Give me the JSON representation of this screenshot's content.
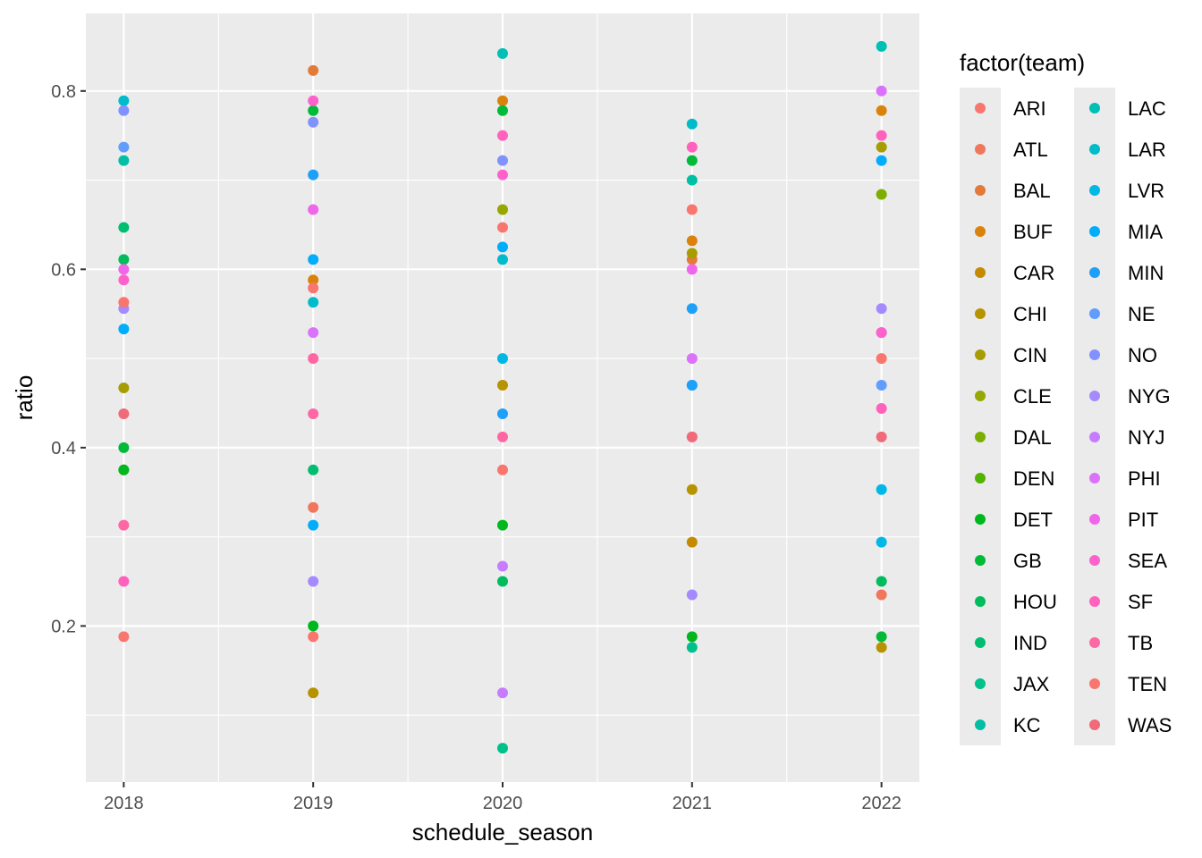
{
  "chart_data": {
    "type": "scatter",
    "xlabel": "schedule_season",
    "ylabel": "ratio",
    "x_ticks": [
      "2018",
      "2019",
      "2020",
      "2021",
      "2022"
    ],
    "y_ticks": [
      "0.2",
      "0.4",
      "0.6",
      "0.8"
    ],
    "xlim": [
      2017.8,
      2022.2
    ],
    "ylim": [
      0.025,
      0.887
    ],
    "grid": true,
    "legend": {
      "title": "factor(team)",
      "position": "right",
      "columns": 2
    },
    "colors": {
      "panel_background": "#EBEBEB",
      "grid_line": "#FFFFFF"
    },
    "series": [
      {
        "name": "ARI",
        "color": "#F8766D",
        "points": [
          [
            2018,
            0.188
          ],
          [
            2019,
            0.188
          ],
          [
            2020,
            0.375
          ]
        ]
      },
      {
        "name": "ATL",
        "color": "#F0775B",
        "points": [
          [
            2019,
            0.333
          ],
          [
            2022,
            0.235
          ]
        ]
      },
      {
        "name": "BAL",
        "color": "#E47A38",
        "points": [
          [
            2019,
            0.823
          ],
          [
            2021,
            0.611
          ]
        ]
      },
      {
        "name": "BUF",
        "color": "#D9830C",
        "points": [
          [
            2019,
            0.588
          ],
          [
            2020,
            0.789
          ],
          [
            2021,
            0.632
          ],
          [
            2022,
            0.778
          ]
        ]
      },
      {
        "name": "CAR",
        "color": "#C58B00",
        "points": [
          [
            2021,
            0.294
          ]
        ]
      },
      {
        "name": "CHI",
        "color": "#B79300",
        "points": [
          [
            2019,
            0.125
          ],
          [
            2020,
            0.47
          ],
          [
            2021,
            0.353
          ],
          [
            2022,
            0.176
          ]
        ]
      },
      {
        "name": "CIN",
        "color": "#A79C00",
        "points": [
          [
            2018,
            0.467
          ],
          [
            2021,
            0.618
          ],
          [
            2022,
            0.737
          ]
        ]
      },
      {
        "name": "CLE",
        "color": "#96A700",
        "points": [
          [
            2020,
            0.667
          ]
        ]
      },
      {
        "name": "DAL",
        "color": "#7CAE00",
        "points": [
          [
            2022,
            0.684
          ]
        ]
      },
      {
        "name": "DEN",
        "color": "#52B300",
        "points": [
          [
            2018,
            0.375
          ]
        ]
      },
      {
        "name": "DET",
        "color": "#00B81E",
        "points": [
          [
            2018,
            0.375
          ],
          [
            2019,
            0.2
          ],
          [
            2020,
            0.313
          ],
          [
            2021,
            0.188
          ]
        ]
      },
      {
        "name": "GB",
        "color": "#00BA38",
        "points": [
          [
            2018,
            0.4
          ],
          [
            2019,
            0.778
          ],
          [
            2020,
            0.778
          ],
          [
            2021,
            0.722
          ],
          [
            2022,
            0.188
          ]
        ]
      },
      {
        "name": "HOU",
        "color": "#00BC5C",
        "points": [
          [
            2018,
            0.611
          ],
          [
            2020,
            0.25
          ],
          [
            2022,
            0.25
          ]
        ]
      },
      {
        "name": "IND",
        "color": "#00BE70",
        "points": [
          [
            2018,
            0.647
          ],
          [
            2019,
            0.375
          ]
        ]
      },
      {
        "name": "JAX",
        "color": "#00C08B",
        "points": [
          [
            2020,
            0.063
          ],
          [
            2021,
            0.176
          ]
        ]
      },
      {
        "name": "KC",
        "color": "#00BFA4",
        "points": [
          [
            2018,
            0.722
          ],
          [
            2021,
            0.7
          ],
          [
            2022,
            0.529
          ]
        ]
      },
      {
        "name": "LAC",
        "color": "#00BFB4",
        "points": [
          [
            2020,
            0.842
          ],
          [
            2022,
            0.85
          ]
        ]
      },
      {
        "name": "LAR",
        "color": "#00BCCA",
        "points": [
          [
            2018,
            0.789
          ],
          [
            2019,
            0.563
          ],
          [
            2020,
            0.611
          ],
          [
            2021,
            0.763
          ]
        ]
      },
      {
        "name": "LVR",
        "color": "#00B8E5",
        "points": [
          [
            2020,
            0.5
          ],
          [
            2022,
            0.294
          ],
          [
            2022,
            0.353
          ]
        ]
      },
      {
        "name": "MIA",
        "color": "#00ADFA",
        "points": [
          [
            2018,
            0.533
          ],
          [
            2019,
            0.313
          ],
          [
            2019,
            0.611
          ],
          [
            2020,
            0.625
          ],
          [
            2021,
            0.47
          ],
          [
            2022,
            0.722
          ]
        ]
      },
      {
        "name": "MIN",
        "color": "#1EA0F8",
        "points": [
          [
            2019,
            0.706
          ],
          [
            2020,
            0.438
          ],
          [
            2021,
            0.47
          ],
          [
            2021,
            0.556
          ]
        ]
      },
      {
        "name": "NE",
        "color": "#619CFF",
        "points": [
          [
            2018,
            0.737
          ],
          [
            2022,
            0.47
          ]
        ]
      },
      {
        "name": "NO",
        "color": "#8192FF",
        "points": [
          [
            2018,
            0.778
          ],
          [
            2019,
            0.765
          ],
          [
            2020,
            0.722
          ]
        ]
      },
      {
        "name": "NYG",
        "color": "#A58AFF",
        "points": [
          [
            2018,
            0.556
          ],
          [
            2019,
            0.25
          ],
          [
            2021,
            0.235
          ],
          [
            2022,
            0.556
          ]
        ]
      },
      {
        "name": "NYJ",
        "color": "#C77CFF",
        "points": [
          [
            2020,
            0.125
          ],
          [
            2020,
            0.267
          ]
        ]
      },
      {
        "name": "PHI",
        "color": "#DB72FB",
        "points": [
          [
            2019,
            0.529
          ],
          [
            2021,
            0.5
          ],
          [
            2022,
            0.8
          ]
        ]
      },
      {
        "name": "PIT",
        "color": "#F066EA",
        "points": [
          [
            2018,
            0.6
          ],
          [
            2019,
            0.667
          ],
          [
            2021,
            0.6
          ]
        ]
      },
      {
        "name": "SEA",
        "color": "#FF61CC",
        "points": [
          [
            2018,
            0.588
          ],
          [
            2019,
            0.789
          ],
          [
            2020,
            0.706
          ],
          [
            2022,
            0.529
          ]
        ]
      },
      {
        "name": "SF",
        "color": "#FF62BC",
        "points": [
          [
            2018,
            0.25
          ],
          [
            2020,
            0.75
          ],
          [
            2021,
            0.737
          ],
          [
            2022,
            0.444
          ],
          [
            2022,
            0.75
          ]
        ]
      },
      {
        "name": "TB",
        "color": "#FF67A4",
        "points": [
          [
            2018,
            0.313
          ],
          [
            2019,
            0.438
          ],
          [
            2019,
            0.5
          ],
          [
            2020,
            0.412
          ],
          [
            2021,
            0.412
          ]
        ]
      },
      {
        "name": "TEN",
        "color": "#F8766D",
        "points": [
          [
            2018,
            0.563
          ],
          [
            2019,
            0.579
          ],
          [
            2020,
            0.647
          ],
          [
            2021,
            0.667
          ],
          [
            2022,
            0.5
          ]
        ]
      },
      {
        "name": "WAS",
        "color": "#F06A7A",
        "points": [
          [
            2018,
            0.438
          ],
          [
            2021,
            0.412
          ],
          [
            2022,
            0.412
          ]
        ]
      }
    ]
  }
}
